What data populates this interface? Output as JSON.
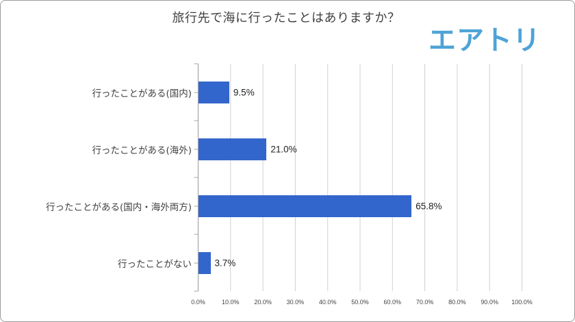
{
  "chart_data": {
    "type": "bar",
    "orientation": "horizontal",
    "title": "旅行先で海に行ったことはありますか？",
    "categories": [
      "行ったことがある(国内)",
      "行ったことがある(海外)",
      "行ったことがある(国内・海外両方)",
      "行ったことがない"
    ],
    "values": [
      9.5,
      21.0,
      65.8,
      3.7
    ],
    "value_labels": [
      "9.5%",
      "21.0%",
      "65.8%",
      "3.7%"
    ],
    "xlabel": "",
    "ylabel": "",
    "xlim": [
      0,
      100
    ],
    "x_ticks": [
      "0.0%",
      "10.0%",
      "20.0%",
      "30.0%",
      "40.0%",
      "50.0%",
      "60.0%",
      "70.0%",
      "80.0%",
      "90.0%",
      "100.0%"
    ],
    "grid": "vertical",
    "legend": "none",
    "bar_color": "#3366cc"
  },
  "header": {
    "title": "旅行先で海に行ったことはありますか？",
    "logo_text": "エアトリ",
    "logo_color": "#4fa3d6"
  }
}
